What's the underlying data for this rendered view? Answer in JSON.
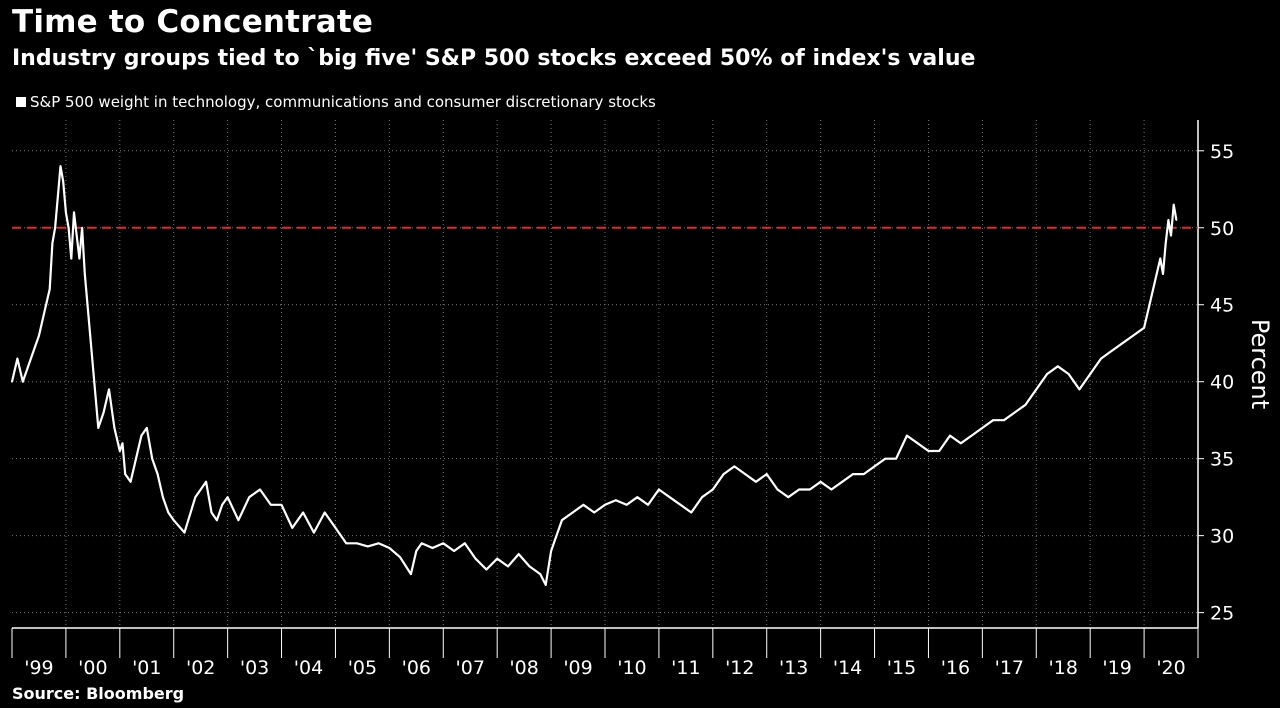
{
  "header": {
    "title": "Time to Concentrate",
    "subtitle": "Industry groups tied to `big five' S&P 500 stocks exceed 50% of index's value"
  },
  "footer": {
    "source": "Source: Bloomberg"
  },
  "colors": {
    "background": "#000000",
    "line": "#ffffff",
    "reference_line": "#e8262a",
    "grid": "#777777"
  },
  "chart_data": {
    "type": "line",
    "title": "Time to Concentrate",
    "subtitle": "Industry groups tied to `big five' S&P 500 stocks exceed 50% of index's value",
    "ylabel": "Percent",
    "xlabel": "",
    "ylim": [
      24,
      57
    ],
    "xlim": [
      1999.0,
      2021.0
    ],
    "y_ticks": [
      25,
      30,
      35,
      40,
      45,
      50,
      55
    ],
    "x_tick_labels": [
      "'99",
      "'00",
      "'01",
      "'02",
      "'03",
      "'04",
      "'05",
      "'06",
      "'07",
      "'08",
      "'09",
      "'10",
      "'11",
      "'12",
      "'13",
      "'14",
      "'15",
      "'16",
      "'17",
      "'18",
      "'19",
      "'20"
    ],
    "grid": true,
    "legend_position": "top-left",
    "reference_line": {
      "y": 50,
      "style": "dashed"
    },
    "series": [
      {
        "name": "S&P 500 weight in technology, communications and consumer discretionary stocks",
        "x": [
          1999.0,
          1999.1,
          1999.2,
          1999.3,
          1999.4,
          1999.5,
          1999.6,
          1999.7,
          1999.75,
          1999.8,
          1999.85,
          1999.9,
          1999.95,
          2000.0,
          2000.05,
          2000.1,
          2000.15,
          2000.2,
          2000.25,
          2000.3,
          2000.35,
          2000.4,
          2000.45,
          2000.5,
          2000.55,
          2000.6,
          2000.7,
          2000.8,
          2000.9,
          2001.0,
          2001.05,
          2001.1,
          2001.2,
          2001.3,
          2001.4,
          2001.5,
          2001.6,
          2001.7,
          2001.8,
          2001.9,
          2002.0,
          2002.2,
          2002.4,
          2002.6,
          2002.7,
          2002.8,
          2002.9,
          2003.0,
          2003.2,
          2003.4,
          2003.6,
          2003.8,
          2004.0,
          2004.2,
          2004.4,
          2004.6,
          2004.8,
          2005.0,
          2005.2,
          2005.4,
          2005.6,
          2005.8,
          2006.0,
          2006.2,
          2006.4,
          2006.5,
          2006.6,
          2006.8,
          2007.0,
          2007.2,
          2007.4,
          2007.6,
          2007.8,
          2008.0,
          2008.2,
          2008.4,
          2008.6,
          2008.8,
          2008.9,
          2009.0,
          2009.2,
          2009.4,
          2009.6,
          2009.8,
          2010.0,
          2010.2,
          2010.4,
          2010.6,
          2010.8,
          2011.0,
          2011.2,
          2011.4,
          2011.6,
          2011.8,
          2012.0,
          2012.2,
          2012.4,
          2012.6,
          2012.8,
          2013.0,
          2013.2,
          2013.4,
          2013.6,
          2013.8,
          2014.0,
          2014.2,
          2014.4,
          2014.6,
          2014.8,
          2015.0,
          2015.2,
          2015.4,
          2015.6,
          2015.8,
          2016.0,
          2016.2,
          2016.4,
          2016.6,
          2016.8,
          2017.0,
          2017.2,
          2017.4,
          2017.6,
          2017.8,
          2018.0,
          2018.2,
          2018.4,
          2018.6,
          2018.8,
          2019.0,
          2019.2,
          2019.4,
          2019.6,
          2019.8,
          2020.0,
          2020.1,
          2020.2,
          2020.3,
          2020.35,
          2020.4,
          2020.45,
          2020.5,
          2020.55,
          2020.6
        ],
        "values": [
          40.0,
          41.5,
          40.0,
          41.0,
          42.0,
          43.0,
          44.5,
          46.0,
          49.0,
          50.0,
          52.0,
          54.0,
          53.0,
          51.0,
          50.0,
          48.0,
          51.0,
          49.5,
          48.0,
          50.0,
          47.0,
          45.0,
          43.0,
          41.0,
          39.0,
          37.0,
          38.0,
          39.5,
          37.0,
          35.5,
          36.0,
          34.0,
          33.5,
          35.0,
          36.5,
          37.0,
          35.0,
          34.0,
          32.5,
          31.5,
          31.0,
          30.2,
          32.5,
          33.5,
          31.5,
          31.0,
          32.0,
          32.5,
          31.0,
          32.5,
          33.0,
          32.0,
          32.0,
          30.5,
          31.5,
          30.2,
          31.5,
          30.5,
          29.5,
          29.5,
          29.3,
          29.5,
          29.2,
          28.6,
          27.5,
          29.0,
          29.5,
          29.2,
          29.5,
          29.0,
          29.5,
          28.5,
          27.8,
          28.5,
          28.0,
          28.8,
          28.0,
          27.5,
          26.8,
          29.0,
          31.0,
          31.5,
          32.0,
          31.5,
          32.0,
          32.3,
          32.0,
          32.5,
          32.0,
          33.0,
          32.5,
          32.0,
          31.5,
          32.5,
          33.0,
          34.0,
          34.5,
          34.0,
          33.5,
          34.0,
          33.0,
          32.5,
          33.0,
          33.0,
          33.5,
          33.0,
          33.5,
          34.0,
          34.0,
          34.5,
          35.0,
          35.0,
          36.5,
          36.0,
          35.5,
          35.5,
          36.5,
          36.0,
          36.5,
          37.0,
          37.5,
          37.5,
          38.0,
          38.5,
          39.5,
          40.5,
          41.0,
          40.5,
          39.5,
          40.5,
          41.5,
          42.0,
          42.5,
          43.0,
          43.5,
          45.0,
          46.5,
          48.0,
          47.0,
          49.0,
          50.5,
          49.5,
          51.5,
          50.5
        ]
      }
    ]
  }
}
